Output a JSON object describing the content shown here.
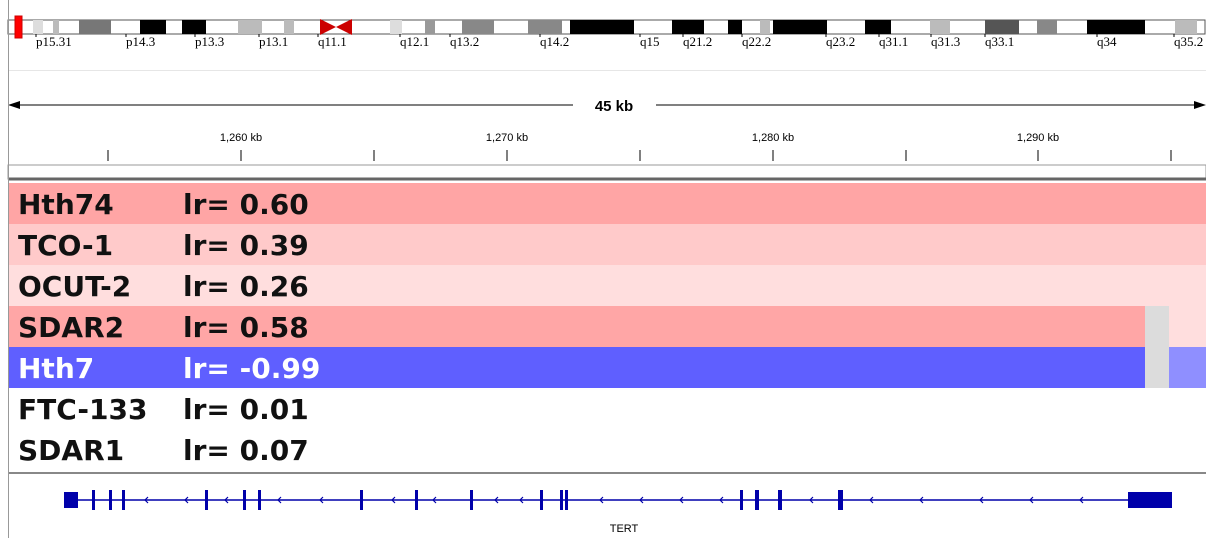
{
  "ideogram": {
    "bands": [
      "p15.31",
      "p14.3",
      "p13.3",
      "p13.1",
      "q11.1",
      "q12.1",
      "q13.2",
      "q14.2",
      "q15",
      "q21.2",
      "q22.2",
      "q23.2",
      "q31.1",
      "q31.3",
      "q33.1",
      "q34",
      "q35.2"
    ]
  },
  "ruler": {
    "span_label": "45 kb",
    "ticks": [
      "1,260 kb",
      "1,270 kb",
      "1,280 kb",
      "1,290 kb"
    ]
  },
  "tracks": [
    {
      "name": "Hth74",
      "lr": "lr= 0.60",
      "color": "#ffa5a5",
      "text_color": "#111111"
    },
    {
      "name": "TCO-1",
      "lr": "lr= 0.39",
      "color": "#ffcaca",
      "text_color": "#111111"
    },
    {
      "name": "OCUT-2",
      "lr": "lr= 0.26",
      "color": "#ffdede",
      "text_color": "#111111"
    },
    {
      "name": "SDAR2",
      "lr": "lr= 0.58",
      "color": "#ffa6a6",
      "text_color": "#111111"
    },
    {
      "name": "Hth7",
      "lr": "lr= -0.99",
      "color": "#5f5fff",
      "text_color": "#ffffff"
    },
    {
      "name": "FTC-133",
      "lr": "lr= 0.01",
      "color": "#ffffff",
      "text_color": "#111111"
    },
    {
      "name": "SDAR1",
      "lr": "lr= 0.07",
      "color": "#ffffff",
      "text_color": "#111111"
    }
  ],
  "gene": {
    "name": "TERT",
    "color": "#0000aa"
  }
}
